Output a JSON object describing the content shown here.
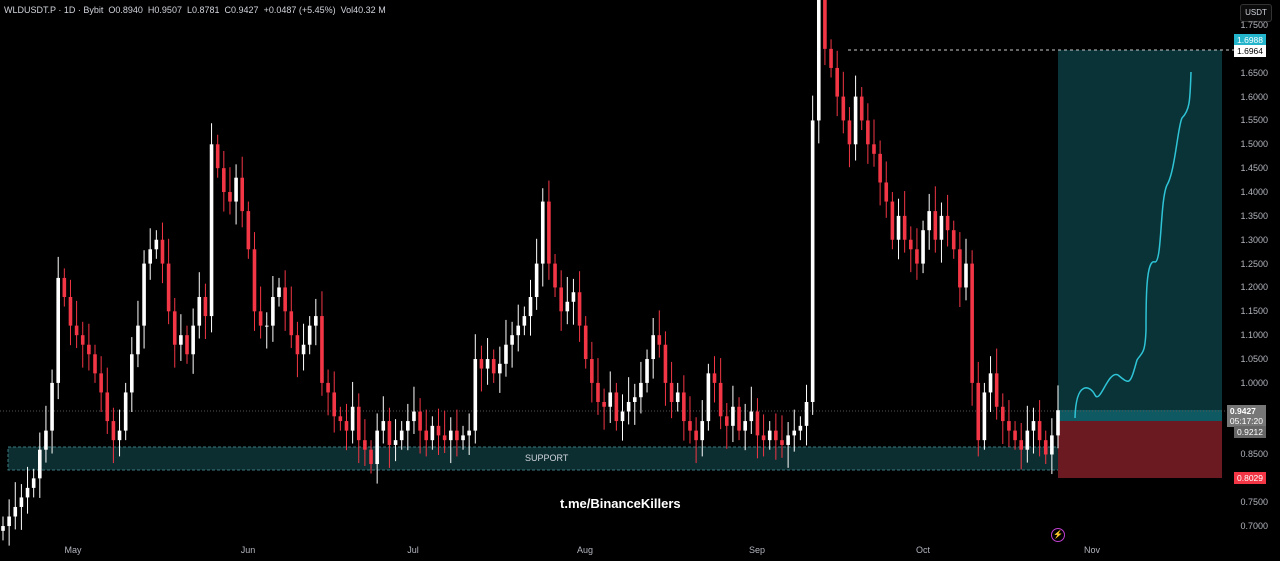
{
  "header": {
    "symbol": "WLDUSDT.P · 1D · Bybit",
    "open": "O0.8940",
    "high": "H0.9507",
    "low": "L0.8781",
    "close": "C0.9427",
    "change": "+0.0487 (+5.45%)",
    "volume": "Vol40.32 M"
  },
  "currency_button": "USDT",
  "price_axis": [
    "1.7500",
    "1.6500",
    "1.6000",
    "1.5500",
    "1.5000",
    "1.4500",
    "1.4000",
    "1.3500",
    "1.3000",
    "1.2500",
    "1.2000",
    "1.1500",
    "1.1000",
    "1.0500",
    "1.0000",
    "0.8500",
    "0.7500",
    "0.7000"
  ],
  "tags": {
    "target_top": "1.6988",
    "target": "1.6964",
    "last_price": "0.9427",
    "countdown": "05:17:20",
    "entry": "0.9212",
    "stop": "0.8029"
  },
  "months": [
    "May",
    "Jun",
    "Jul",
    "Aug",
    "Sep",
    "Oct",
    "Nov"
  ],
  "support_label": "SUPPORT",
  "watermark": "t.me/BinanceKillers",
  "colors": {
    "up": "#ffffff",
    "down": "#f23645",
    "profit": "#0a3338",
    "loss": "#6b1a22",
    "curve": "#2ec4d6"
  },
  "closes": [
    0.7,
    0.72,
    0.74,
    0.76,
    0.78,
    0.8,
    0.86,
    0.9,
    1.0,
    1.22,
    1.18,
    1.12,
    1.1,
    1.08,
    1.06,
    1.02,
    0.98,
    0.92,
    0.88,
    0.9,
    0.98,
    1.06,
    1.12,
    1.25,
    1.28,
    1.3,
    1.25,
    1.15,
    1.08,
    1.1,
    1.06,
    1.12,
    1.18,
    1.14,
    1.5,
    1.45,
    1.4,
    1.38,
    1.43,
    1.36,
    1.28,
    1.15,
    1.12,
    1.12,
    1.18,
    1.2,
    1.15,
    1.1,
    1.06,
    1.08,
    1.12,
    1.14,
    1.0,
    0.98,
    0.93,
    0.92,
    0.9,
    0.95,
    0.88,
    0.86,
    0.83,
    0.9,
    0.92,
    0.87,
    0.88,
    0.9,
    0.92,
    0.94,
    0.9,
    0.88,
    0.91,
    0.89,
    0.88,
    0.9,
    0.88,
    0.89,
    0.9,
    1.05,
    1.03,
    1.05,
    1.02,
    1.04,
    1.08,
    1.1,
    1.12,
    1.14,
    1.18,
    1.25,
    1.38,
    1.25,
    1.2,
    1.15,
    1.17,
    1.19,
    1.12,
    1.05,
    1.0,
    0.96,
    0.95,
    0.98,
    0.92,
    0.94,
    0.96,
    0.97,
    1.0,
    1.05,
    1.1,
    1.08,
    1.0,
    0.96,
    0.98,
    0.92,
    0.9,
    0.88,
    0.92,
    1.02,
    1.0,
    0.93,
    0.91,
    0.95,
    0.9,
    0.92,
    0.94,
    0.89,
    0.88,
    0.9,
    0.88,
    0.87,
    0.89,
    0.9,
    0.91,
    0.96,
    1.55,
    1.85,
    1.7,
    1.66,
    1.6,
    1.55,
    1.5,
    1.6,
    1.55,
    1.5,
    1.48,
    1.42,
    1.38,
    1.3,
    1.35,
    1.3,
    1.28,
    1.25,
    1.32,
    1.36,
    1.3,
    1.35,
    1.32,
    1.28,
    1.2,
    1.25,
    1.0,
    0.88,
    0.98,
    1.02,
    0.95,
    0.92,
    0.9,
    0.88,
    0.86,
    0.9,
    0.92,
    0.88,
    0.85,
    0.89,
    0.9427
  ]
}
